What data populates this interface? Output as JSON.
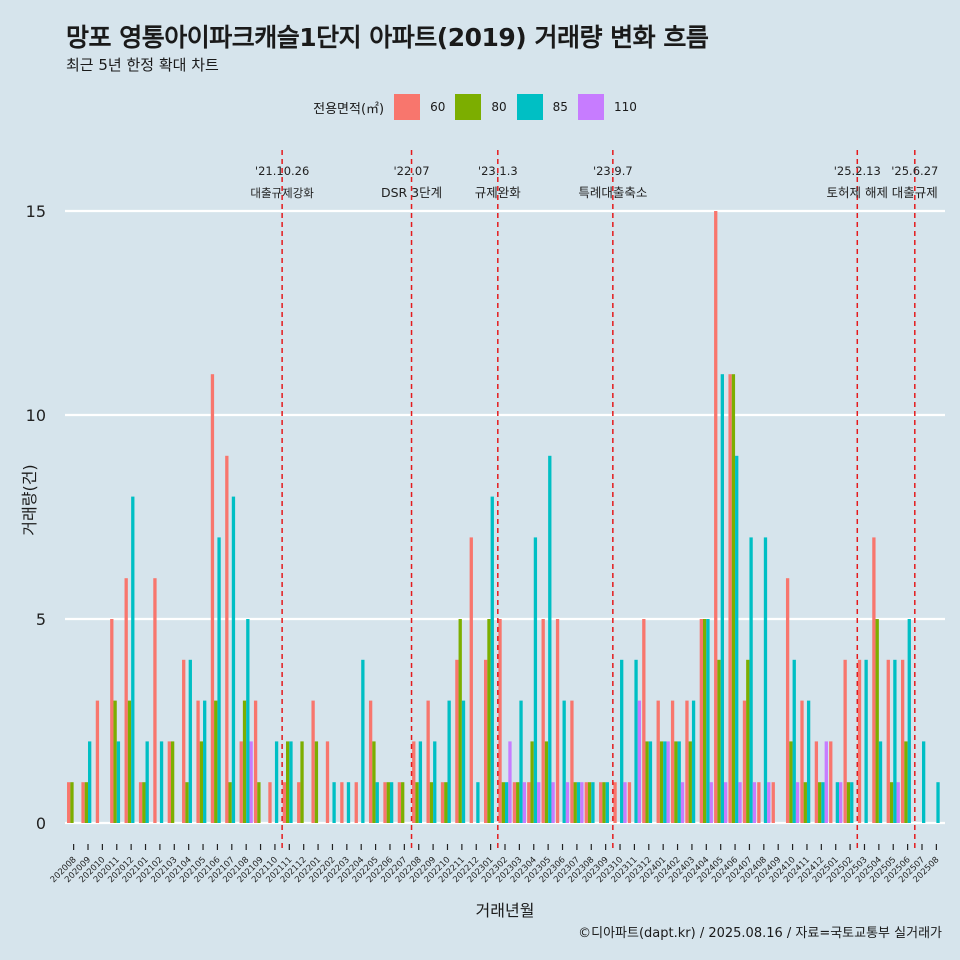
{
  "title": "망포 영통아이파크캐슬1단지 아파트(2019) 거래량 변화 흐름",
  "subtitle": "최근 5년 한정 확대 차트",
  "caption": "©디아파트(dapt.kr) / 2025.08.16 / 자료=국토교통부 실거래가",
  "legend": {
    "title": "전용면적(㎡)",
    "items": [
      {
        "label": "60",
        "color": "#f8766d"
      },
      {
        "label": "80",
        "color": "#7cae00"
      },
      {
        "label": "85",
        "color": "#00bfc4"
      },
      {
        "label": "110",
        "color": "#c77cff"
      }
    ]
  },
  "chart_data": {
    "type": "bar",
    "xlabel": "거래년월",
    "ylabel": "거래량(건)",
    "ylim": [
      0,
      15
    ],
    "yticks": [
      0,
      5,
      10,
      15
    ],
    "grid": "horizontal major",
    "legend_position": "top",
    "categories": [
      "202008",
      "202009",
      "202010",
      "202011",
      "202012",
      "202101",
      "202102",
      "202103",
      "202104",
      "202105",
      "202106",
      "202107",
      "202108",
      "202109",
      "202110",
      "202111",
      "202112",
      "202201",
      "202202",
      "202203",
      "202204",
      "202205",
      "202206",
      "202207",
      "202208",
      "202209",
      "202210",
      "202211",
      "202212",
      "202301",
      "202302",
      "202303",
      "202304",
      "202305",
      "202306",
      "202307",
      "202308",
      "202309",
      "202310",
      "202311",
      "202312",
      "202401",
      "202402",
      "202403",
      "202404",
      "202405",
      "202406",
      "202407",
      "202408",
      "202409",
      "202410",
      "202411",
      "202412",
      "202501",
      "202502",
      "202503",
      "202504",
      "202505",
      "202506",
      "202507",
      "202508"
    ],
    "series": [
      {
        "name": "60",
        "values": [
          1,
          1,
          3,
          5,
          6,
          1,
          6,
          2,
          4,
          3,
          11,
          9,
          2,
          3,
          1,
          1,
          1,
          3,
          2,
          1,
          1,
          3,
          1,
          1,
          2,
          3,
          1,
          4,
          7,
          4,
          5,
          1,
          1,
          5,
          5,
          3,
          1,
          1,
          1,
          1,
          5,
          3,
          3,
          3,
          5,
          15,
          11,
          3,
          1,
          1,
          6,
          3,
          2,
          2,
          4,
          4,
          7,
          4,
          4,
          0,
          0
        ]
      },
      {
        "name": "80",
        "values": [
          1,
          1,
          0,
          3,
          3,
          1,
          0,
          2,
          1,
          2,
          3,
          1,
          3,
          1,
          0,
          2,
          2,
          2,
          0,
          0,
          0,
          2,
          1,
          1,
          1,
          1,
          1,
          5,
          0,
          5,
          1,
          1,
          2,
          2,
          0,
          1,
          1,
          1,
          0,
          0,
          2,
          2,
          2,
          2,
          5,
          4,
          11,
          4,
          0,
          0,
          2,
          1,
          1,
          0,
          1,
          0,
          5,
          1,
          2,
          0,
          0
        ]
      },
      {
        "name": "85",
        "values": [
          0,
          2,
          0,
          2,
          8,
          2,
          2,
          0,
          4,
          3,
          7,
          8,
          5,
          0,
          2,
          2,
          0,
          0,
          1,
          1,
          4,
          1,
          1,
          0,
          2,
          2,
          3,
          3,
          1,
          8,
          1,
          3,
          7,
          9,
          3,
          1,
          1,
          1,
          4,
          4,
          2,
          2,
          2,
          3,
          5,
          11,
          9,
          7,
          7,
          0,
          4,
          3,
          1,
          1,
          1,
          4,
          2,
          4,
          5,
          2,
          1
        ]
      },
      {
        "name": "110",
        "values": [
          0,
          0,
          0,
          0,
          0,
          0,
          0,
          0,
          0,
          0,
          0,
          0,
          2,
          0,
          0,
          0,
          0,
          0,
          0,
          0,
          0,
          0,
          0,
          0,
          0,
          0,
          0,
          0,
          0,
          0,
          2,
          1,
          1,
          1,
          1,
          1,
          0,
          0,
          1,
          3,
          0,
          2,
          1,
          0,
          1,
          1,
          1,
          1,
          1,
          0,
          1,
          0,
          2,
          1,
          0,
          0,
          0,
          1,
          0,
          0,
          0
        ]
      }
    ],
    "annotations": [
      {
        "after": "202110",
        "date": "'21.10.26",
        "label": "대출규제강화"
      },
      {
        "after": "202207",
        "date": "'22.07",
        "label": "DSR 3단계"
      },
      {
        "after": "202301",
        "date": "'23.1.3",
        "label": "규제완화"
      },
      {
        "after": "202309",
        "date": "'23.9.7",
        "label": "특례대출축소"
      },
      {
        "after": "202502",
        "date": "'25.2.13",
        "label": "토허제 해제"
      },
      {
        "after": "202506",
        "date": "'25.6.27",
        "label": "대출규제"
      }
    ]
  }
}
